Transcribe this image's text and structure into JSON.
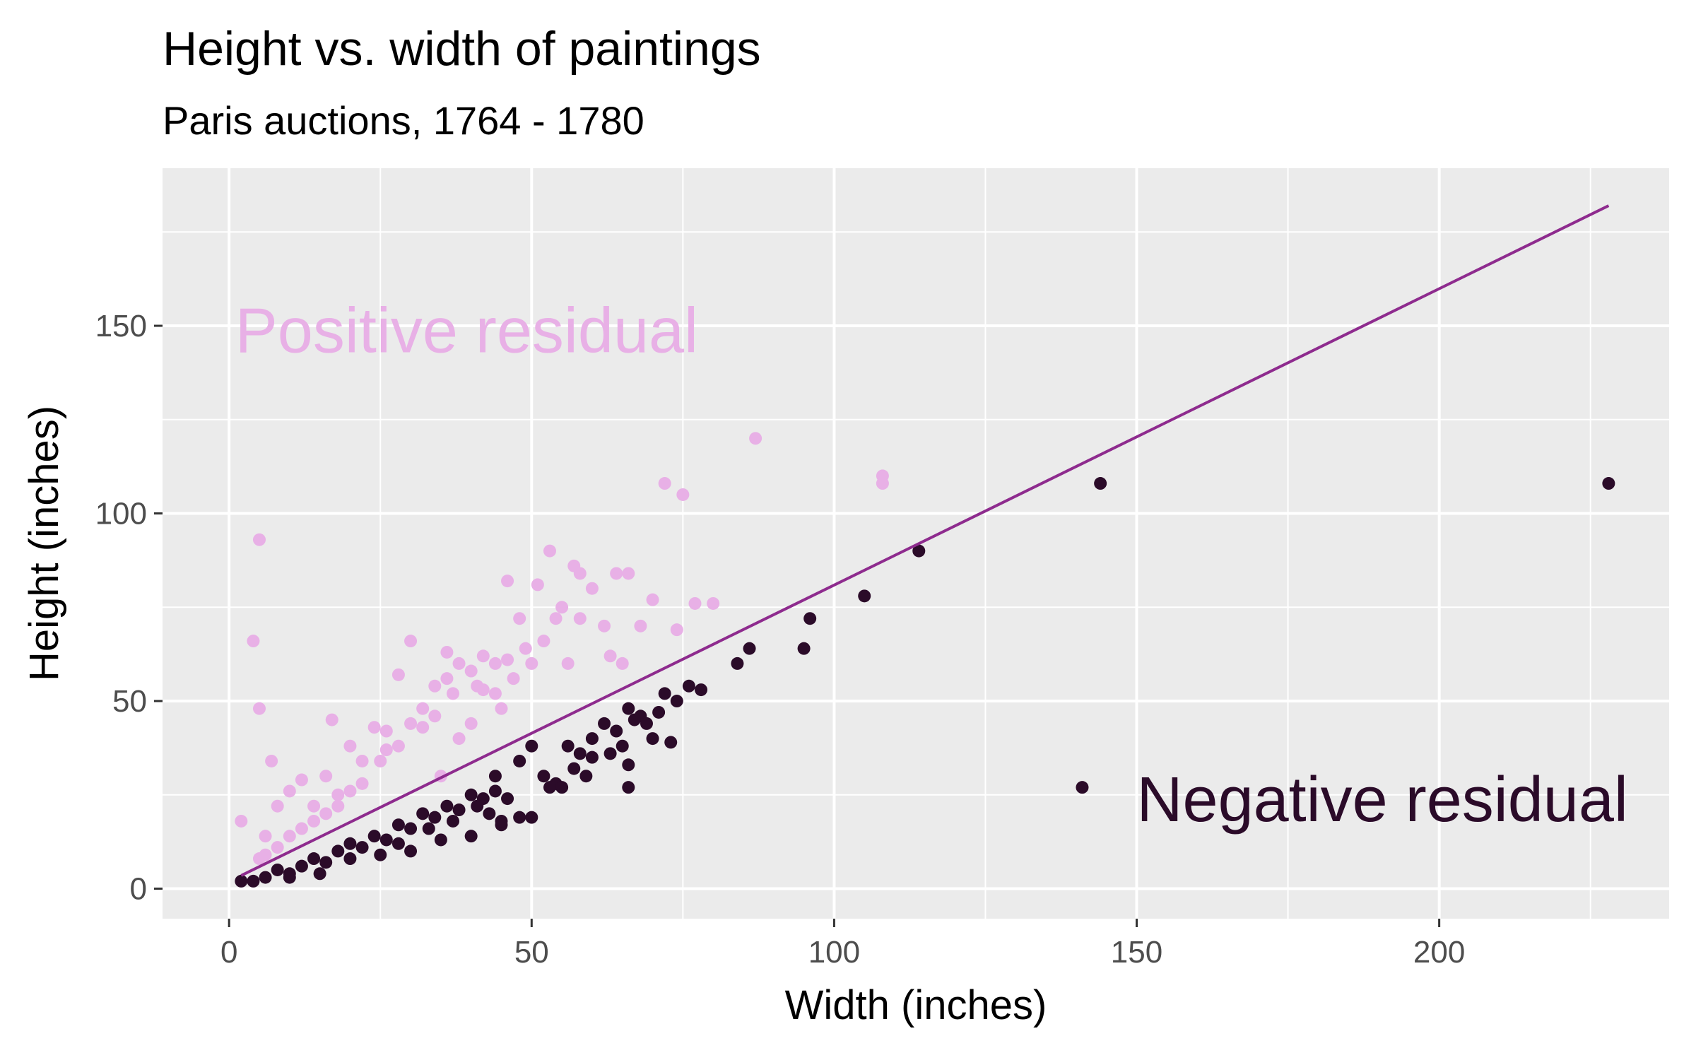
{
  "chart_data": {
    "type": "scatter",
    "title": "Height vs. width of paintings",
    "subtitle": "Paris auctions, 1764 - 1780",
    "xlabel": "Width (inches)",
    "ylabel": "Height (inches)",
    "xlim": [
      -11,
      238
    ],
    "ylim": [
      -8,
      192
    ],
    "x_ticks": [
      0,
      50,
      100,
      150,
      200
    ],
    "y_ticks": [
      0,
      50,
      100,
      150
    ],
    "grid": true,
    "background": "#ebebeb",
    "annotations": [
      {
        "text": "Positive residual",
        "x": 1,
        "y": 149,
        "color": "#e8b0e6"
      },
      {
        "text": "Negative residual",
        "x": 150,
        "y": 24,
        "color": "#2b0b29"
      }
    ],
    "fit_line": {
      "color": "#8e2b8e",
      "x": [
        2,
        228
      ],
      "y": [
        3.5,
        182
      ]
    },
    "series": [
      {
        "name": "Positive residual",
        "color": "#e8b0e6",
        "points": [
          [
            2,
            18
          ],
          [
            4,
            66
          ],
          [
            5,
            48
          ],
          [
            5,
            93
          ],
          [
            6,
            14
          ],
          [
            7,
            34
          ],
          [
            8,
            22
          ],
          [
            10,
            26
          ],
          [
            12,
            29
          ],
          [
            14,
            22
          ],
          [
            16,
            30
          ],
          [
            17,
            45
          ],
          [
            18,
            25
          ],
          [
            20,
            38
          ],
          [
            22,
            34
          ],
          [
            24,
            43
          ],
          [
            26,
            42
          ],
          [
            28,
            57
          ],
          [
            30,
            66
          ],
          [
            32,
            48
          ],
          [
            34,
            54
          ],
          [
            36,
            63
          ],
          [
            38,
            60
          ],
          [
            40,
            58
          ],
          [
            42,
            53
          ],
          [
            44,
            52
          ],
          [
            46,
            61
          ],
          [
            48,
            72
          ],
          [
            50,
            60
          ],
          [
            51,
            81
          ],
          [
            53,
            90
          ],
          [
            55,
            75
          ],
          [
            57,
            86
          ],
          [
            58,
            84
          ],
          [
            60,
            80
          ],
          [
            62,
            70
          ],
          [
            64,
            84
          ],
          [
            65,
            60
          ],
          [
            66,
            84
          ],
          [
            68,
            70
          ],
          [
            70,
            77
          ],
          [
            72,
            108
          ],
          [
            74,
            69
          ],
          [
            75,
            105
          ],
          [
            77,
            76
          ],
          [
            80,
            76
          ],
          [
            87,
            120
          ],
          [
            108,
            108
          ],
          [
            108,
            110
          ],
          [
            35,
            30
          ],
          [
            38,
            40
          ],
          [
            40,
            44
          ],
          [
            45,
            48
          ],
          [
            36,
            56
          ],
          [
            44,
            60
          ],
          [
            30,
            44
          ],
          [
            28,
            38
          ],
          [
            25,
            34
          ],
          [
            22,
            28
          ],
          [
            20,
            26
          ],
          [
            18,
            22
          ],
          [
            16,
            20
          ],
          [
            14,
            18
          ],
          [
            12,
            16
          ],
          [
            10,
            14
          ],
          [
            8,
            11
          ],
          [
            6,
            9
          ],
          [
            5,
            8
          ],
          [
            26,
            37
          ],
          [
            32,
            43
          ],
          [
            34,
            46
          ],
          [
            37,
            52
          ],
          [
            41,
            54
          ],
          [
            47,
            56
          ],
          [
            49,
            64
          ],
          [
            52,
            66
          ],
          [
            54,
            72
          ],
          [
            56,
            60
          ],
          [
            58,
            72
          ],
          [
            63,
            62
          ],
          [
            46,
            82
          ],
          [
            42,
            62
          ]
        ]
      },
      {
        "name": "Negative residual",
        "color": "#2b0b29",
        "points": [
          [
            2,
            2
          ],
          [
            4,
            2
          ],
          [
            6,
            3
          ],
          [
            8,
            5
          ],
          [
            10,
            3
          ],
          [
            12,
            6
          ],
          [
            14,
            8
          ],
          [
            16,
            7
          ],
          [
            18,
            10
          ],
          [
            20,
            12
          ],
          [
            22,
            11
          ],
          [
            24,
            14
          ],
          [
            26,
            13
          ],
          [
            28,
            17
          ],
          [
            30,
            16
          ],
          [
            32,
            20
          ],
          [
            34,
            19
          ],
          [
            36,
            22
          ],
          [
            38,
            21
          ],
          [
            40,
            25
          ],
          [
            42,
            24
          ],
          [
            44,
            26
          ],
          [
            46,
            24
          ],
          [
            48,
            19
          ],
          [
            50,
            19
          ],
          [
            52,
            30
          ],
          [
            54,
            28
          ],
          [
            56,
            38
          ],
          [
            58,
            36
          ],
          [
            60,
            40
          ],
          [
            62,
            44
          ],
          [
            64,
            42
          ],
          [
            66,
            27
          ],
          [
            66,
            48
          ],
          [
            68,
            46
          ],
          [
            70,
            40
          ],
          [
            72,
            52
          ],
          [
            74,
            50
          ],
          [
            76,
            54
          ],
          [
            78,
            53
          ],
          [
            84,
            60
          ],
          [
            86,
            64
          ],
          [
            95,
            64
          ],
          [
            96,
            72
          ],
          [
            105,
            78
          ],
          [
            114,
            90
          ],
          [
            141,
            27
          ],
          [
            144,
            108
          ],
          [
            228,
            108
          ],
          [
            30,
            10
          ],
          [
            35,
            13
          ],
          [
            40,
            14
          ],
          [
            45,
            17
          ],
          [
            44,
            30
          ],
          [
            48,
            34
          ],
          [
            50,
            38
          ],
          [
            55,
            27
          ],
          [
            57,
            32
          ],
          [
            60,
            35
          ],
          [
            65,
            38
          ],
          [
            66,
            33
          ],
          [
            45,
            18
          ],
          [
            43,
            20
          ],
          [
            20,
            8
          ],
          [
            25,
            9
          ],
          [
            28,
            12
          ],
          [
            15,
            4
          ],
          [
            10,
            4
          ],
          [
            33,
            16
          ],
          [
            37,
            18
          ],
          [
            41,
            22
          ],
          [
            53,
            27
          ],
          [
            59,
            30
          ],
          [
            63,
            36
          ],
          [
            69,
            44
          ],
          [
            71,
            47
          ],
          [
            73,
            39
          ],
          [
            67,
            45
          ]
        ]
      }
    ]
  }
}
